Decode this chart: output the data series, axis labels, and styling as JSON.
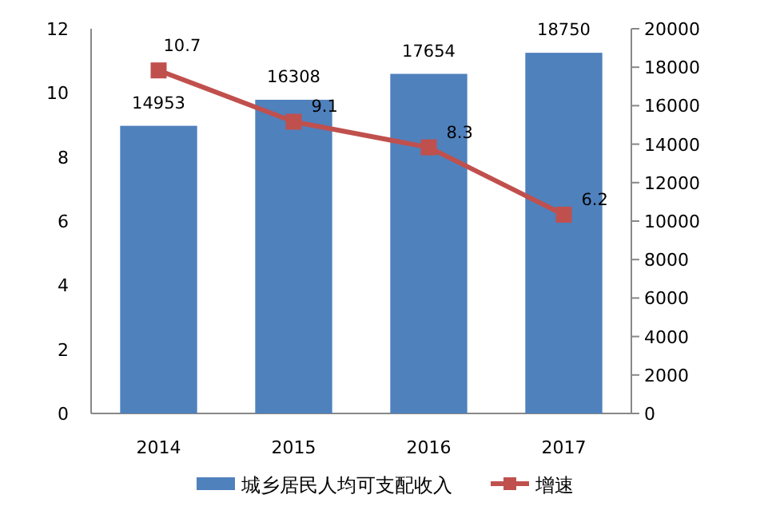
{
  "chart_data": {
    "type": "bar",
    "categories": [
      "2014",
      "2015",
      "2016",
      "2017"
    ],
    "series": [
      {
        "name": "城乡居民人均可支配收入",
        "axis": "y2",
        "color": "#4f81bd",
        "values": [
          14953,
          16308,
          17654,
          18750
        ]
      },
      {
        "name": "增速",
        "type": "line",
        "color": "#c0504d",
        "values": [
          10.7,
          9.1,
          8.3,
          6.2
        ]
      }
    ],
    "ylim": [
      0,
      12
    ],
    "yticks": [
      0,
      2,
      4,
      6,
      8,
      10,
      12
    ],
    "y2lim": [
      0,
      20000
    ],
    "y2ticks": [
      0,
      2000,
      4000,
      6000,
      8000,
      10000,
      12000,
      14000,
      16000,
      18000,
      20000
    ],
    "marker": "square",
    "data_labels": true,
    "legend": "bottom"
  }
}
